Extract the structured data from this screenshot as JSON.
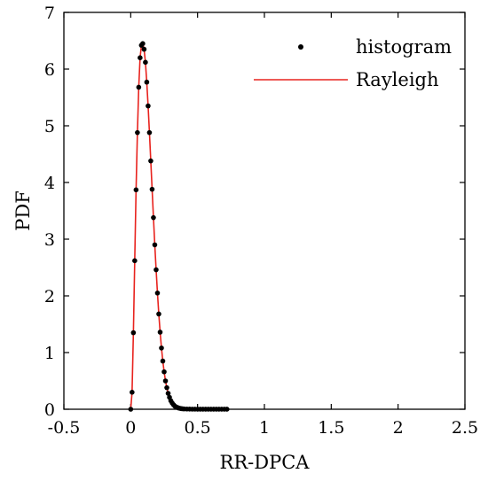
{
  "chart_data": {
    "type": "line",
    "xlabel": "RR-DPCA",
    "ylabel": "PDF",
    "xlim": [
      -0.5,
      2.5
    ],
    "ylim": [
      0,
      7
    ],
    "xticks": [
      "-0.5",
      "0",
      "0.5",
      "1",
      "1.5",
      "2",
      "2.5"
    ],
    "xtick_values": [
      -0.5,
      0,
      0.5,
      1,
      1.5,
      2,
      2.5
    ],
    "yticks": [
      "0",
      "1",
      "2",
      "3",
      "4",
      "5",
      "6",
      "7"
    ],
    "ytick_values": [
      0,
      1,
      2,
      3,
      4,
      5,
      6,
      7
    ],
    "grid": false,
    "legend_position": "top-right",
    "series": [
      {
        "name": "histogram",
        "type": "scatter",
        "color": "#000000",
        "x": [
          0.0,
          0.01,
          0.02,
          0.03,
          0.04,
          0.05,
          0.06,
          0.07,
          0.08,
          0.09,
          0.1,
          0.11,
          0.12,
          0.13,
          0.14,
          0.15,
          0.16,
          0.17,
          0.18,
          0.19,
          0.2,
          0.21,
          0.22,
          0.23,
          0.24,
          0.25,
          0.26,
          0.27,
          0.28,
          0.29,
          0.3,
          0.31,
          0.32,
          0.33,
          0.34,
          0.35,
          0.36,
          0.37,
          0.38,
          0.39,
          0.4,
          0.42,
          0.44,
          0.46,
          0.48,
          0.5,
          0.52,
          0.54,
          0.56,
          0.58,
          0.6,
          0.62,
          0.64,
          0.66,
          0.68,
          0.7,
          0.72
        ],
        "y": [
          0.0,
          0.3,
          1.35,
          2.62,
          3.87,
          4.88,
          5.68,
          6.2,
          6.42,
          6.45,
          6.35,
          6.12,
          5.77,
          5.35,
          4.88,
          4.38,
          3.88,
          3.38,
          2.9,
          2.46,
          2.05,
          1.68,
          1.36,
          1.08,
          0.85,
          0.66,
          0.5,
          0.38,
          0.28,
          0.21,
          0.15,
          0.11,
          0.08,
          0.055,
          0.04,
          0.03,
          0.02,
          0.015,
          0.01,
          0.008,
          0.006,
          0.004,
          0.003,
          0.002,
          0.002,
          0.001,
          0.001,
          0.001,
          0.001,
          0.001,
          0.001,
          0.001,
          0.001,
          0.001,
          0.001,
          0.001,
          0.001
        ]
      },
      {
        "name": "Rayleigh",
        "type": "line",
        "color": "#e8231e",
        "x": [
          0.0,
          0.01,
          0.02,
          0.03,
          0.04,
          0.05,
          0.06,
          0.07,
          0.08,
          0.09,
          0.1,
          0.11,
          0.12,
          0.13,
          0.14,
          0.15,
          0.16,
          0.17,
          0.18,
          0.19,
          0.2,
          0.21,
          0.22,
          0.23,
          0.24,
          0.25,
          0.26,
          0.27,
          0.28,
          0.29,
          0.3,
          0.32,
          0.34,
          0.36,
          0.38,
          0.4,
          0.44,
          0.48,
          0.55
        ],
        "y": [
          0.0,
          0.3,
          1.35,
          2.62,
          3.87,
          4.88,
          5.68,
          6.2,
          6.42,
          6.45,
          6.35,
          6.12,
          5.77,
          5.35,
          4.88,
          4.38,
          3.88,
          3.38,
          2.9,
          2.46,
          2.05,
          1.68,
          1.36,
          1.08,
          0.85,
          0.66,
          0.5,
          0.38,
          0.28,
          0.21,
          0.15,
          0.08,
          0.04,
          0.02,
          0.01,
          0.006,
          0.003,
          0.002,
          0.001
        ]
      }
    ]
  }
}
